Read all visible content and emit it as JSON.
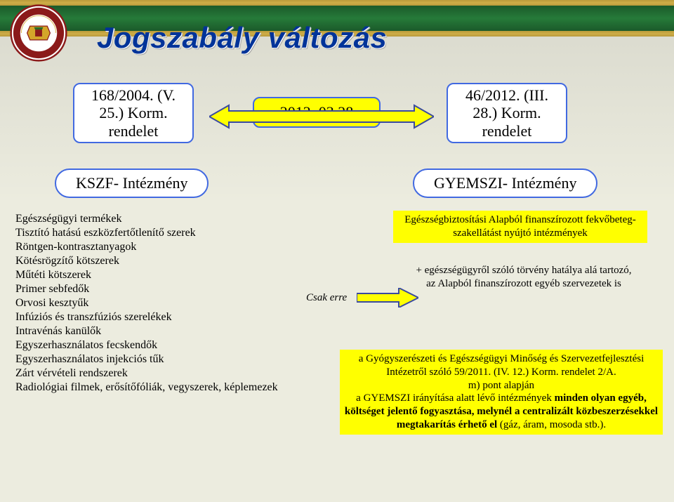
{
  "title": "Jogszabály változás",
  "colors": {
    "gold": "#b89a3a",
    "green": "#1f6a30",
    "blue_outline": "#4169e1",
    "title_color": "#003399",
    "yellow": "#ffff00",
    "bg1": "#d8d8cc",
    "bg2": "#ececdf",
    "arrow_fill": "#ffff00",
    "arrow_stroke": "#3a4aa0",
    "inst_red": "#8b1a1a",
    "inst_white": "#ffffff",
    "inst_gold": "#d4a62a"
  },
  "boxes": {
    "left_decree": "168/2004. (V. 25.) Korm. rendelet",
    "mid_decree": "2012. 03.28",
    "right_decree": "46/2012. (III. 28.) Korm. rendelet",
    "left_inst": "KSZF- Intézmény",
    "right_inst": "GYEMSZI- Intézmény"
  },
  "left_list": [
    "Egészségügyi termékek",
    "Tisztító hatású eszközfertőtlenítő szerek",
    "Röntgen-kontrasztanyagok",
    "Kötésrögzítő kötszerek",
    "Műtéti kötszerek",
    "Primer sebfedők",
    "Orvosi kesztyűk",
    "Infúziós és transzfúziós szerelékek",
    "Intravénás kanülők",
    "Egyszerhasználatos fecskendők",
    "Egyszerhasználatos injekciós tűk",
    "Zárt vérvételi rendszerek",
    "Radiológiai filmek, erősítőfóliák, vegyszerek, képlemezek"
  ],
  "csak": "Csak erre",
  "hi1": "Egészségbiztosítási Alapból finanszírozott fekvőbeteg-szakellátást nyújtó intézmények",
  "plus": "+ egészségügyről szóló törvény hatálya alá tartozó, az Alapból finanszírozott egyéb szervezetek is",
  "hi2a": "a Gyógyszerészeti és Egészségügyi Minőség és Szervezetfejlesztési Intézetről szóló 59/2011. (IV. 12.) Korm. rendelet 2/A.",
  "hi2b": "m) pont alapján",
  "hi2c_pre": "a GYEMSZI irányítása alatt lévő intézmények ",
  "hi2c_bold": "minden olyan egyéb, költséget jelentő fogyasztása, melynél a centralizált közbeszerzésekkel megtakarítás érhető el",
  "hi2c_post": " (gáz, áram, mosoda stb.)."
}
